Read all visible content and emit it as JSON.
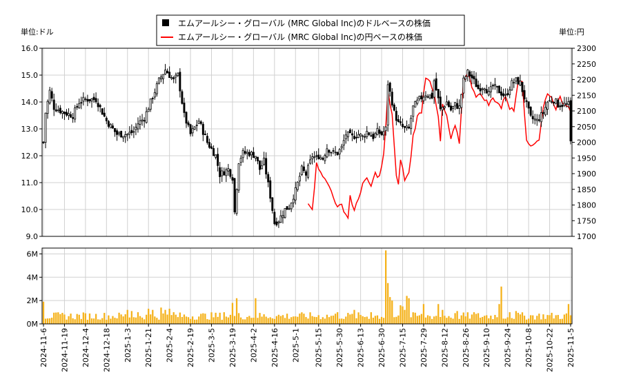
{
  "chart_data": {
    "type": "candlestick+line+bar",
    "legend": [
      {
        "label": "エムアールシー・グローバル (MRC Global Inc)のドルベースの株価",
        "marker": "square",
        "color": "#000000"
      },
      {
        "label": "エムアールシー・グローバル (MRC Global Inc)の円ベースの株価",
        "marker": "line",
        "color": "#ff0000"
      }
    ],
    "left_unit": "単位:ドル",
    "right_unit": "単位:円",
    "left_ylim": [
      9.0,
      16.0
    ],
    "left_ticks": [
      "9.0",
      "10.0",
      "11.0",
      "12.0",
      "13.0",
      "14.0",
      "15.0",
      "16.0"
    ],
    "right_ylim": [
      1700,
      2300
    ],
    "right_ticks": [
      "1700",
      "1750",
      "1800",
      "1850",
      "1900",
      "1950",
      "2000",
      "2050",
      "2100",
      "2150",
      "2200",
      "2250",
      "2300"
    ],
    "volume_ylim": [
      0,
      6500000
    ],
    "volume_ticks": [
      {
        "label": "0M",
        "value": 0
      },
      {
        "label": "2M",
        "value": 2000000
      },
      {
        "label": "4M",
        "value": 4000000
      },
      {
        "label": "6M",
        "value": 6000000
      }
    ],
    "x_ticks": [
      "2024-11-6",
      "2024-11-19",
      "2024-12-4",
      "2024-12-18",
      "2025-1-3",
      "2025-1-21",
      "2025-2-4",
      "2025-2-19",
      "2025-3-5",
      "2025-3-19",
      "2025-4-2",
      "2025-4-16",
      "2025-5-1",
      "2025-5-15",
      "2025-5-30",
      "2025-6-13",
      "2025-6-30",
      "2025-7-15",
      "2025-7-29",
      "2025-8-12",
      "2025-8-26",
      "2025-9-10",
      "2025-9-24",
      "2025-10-8",
      "2025-10-22",
      "2025-11-5"
    ],
    "trading_days": 252,
    "usd_close_keypoints": [
      [
        0,
        12.5
      ],
      [
        1,
        13.6
      ],
      [
        3,
        14.4
      ],
      [
        5,
        13.8
      ],
      [
        10,
        13.6
      ],
      [
        14,
        13.5
      ],
      [
        17,
        14.0
      ],
      [
        20,
        14.1
      ],
      [
        25,
        14.1
      ],
      [
        30,
        13.3
      ],
      [
        35,
        12.8
      ],
      [
        40,
        12.8
      ],
      [
        43,
        12.9
      ],
      [
        45,
        13.2
      ],
      [
        48,
        13.4
      ],
      [
        52,
        14.2
      ],
      [
        55,
        14.8
      ],
      [
        58,
        15.2
      ],
      [
        62,
        14.8
      ],
      [
        64,
        15.0
      ],
      [
        67,
        13.5
      ],
      [
        70,
        12.8
      ],
      [
        74,
        13.3
      ],
      [
        78,
        12.5
      ],
      [
        82,
        12.0
      ],
      [
        84,
        11.3
      ],
      [
        88,
        11.5
      ],
      [
        90,
        11.2
      ],
      [
        91,
        9.9
      ],
      [
        93,
        11.8
      ],
      [
        95,
        12.1
      ],
      [
        98,
        12.1
      ],
      [
        101,
        12.0
      ],
      [
        103,
        11.5
      ],
      [
        105,
        11.8
      ],
      [
        108,
        10.5
      ],
      [
        110,
        9.5
      ],
      [
        112,
        9.6
      ],
      [
        115,
        10.0
      ],
      [
        117,
        10.1
      ],
      [
        120,
        10.7
      ],
      [
        123,
        11.5
      ],
      [
        125,
        11.3
      ],
      [
        128,
        12.0
      ],
      [
        130,
        11.9
      ],
      [
        131,
        12.0
      ],
      [
        133,
        11.9
      ],
      [
        135,
        12.3
      ],
      [
        138,
        12.1
      ],
      [
        140,
        12.1
      ],
      [
        142,
        12.3
      ],
      [
        144,
        12.8
      ],
      [
        147,
        12.7
      ],
      [
        150,
        12.8
      ],
      [
        152,
        12.7
      ],
      [
        154,
        12.9
      ],
      [
        157,
        12.7
      ],
      [
        159,
        12.9
      ],
      [
        161,
        12.8
      ],
      [
        163,
        13.0
      ],
      [
        164,
        14.7
      ],
      [
        166,
        14.0
      ],
      [
        167,
        13.6
      ],
      [
        169,
        13.2
      ],
      [
        172,
        13.0
      ],
      [
        174,
        13.0
      ],
      [
        176,
        13.8
      ],
      [
        179,
        14.1
      ],
      [
        182,
        14.3
      ],
      [
        185,
        14.2
      ],
      [
        186,
        14.8
      ],
      [
        188,
        14.1
      ],
      [
        189,
        13.7
      ],
      [
        192,
        14.0
      ],
      [
        194,
        13.7
      ],
      [
        196,
        13.9
      ],
      [
        198,
        13.8
      ],
      [
        200,
        14.8
      ],
      [
        202,
        15.1
      ],
      [
        204,
        14.9
      ],
      [
        207,
        14.5
      ],
      [
        210,
        14.6
      ],
      [
        212,
        14.3
      ],
      [
        214,
        14.6
      ],
      [
        217,
        14.4
      ],
      [
        220,
        14.2
      ],
      [
        223,
        14.7
      ],
      [
        225,
        14.8
      ],
      [
        227,
        14.7
      ],
      [
        230,
        13.9
      ],
      [
        232,
        13.4
      ],
      [
        235,
        13.3
      ],
      [
        238,
        13.6
      ],
      [
        240,
        14.0
      ],
      [
        243,
        14.1
      ],
      [
        245,
        13.9
      ],
      [
        247,
        13.9
      ],
      [
        250,
        13.9
      ],
      [
        251,
        12.5
      ]
    ],
    "jpy_start_day": 126,
    "jpy_close_keypoints": [
      [
        126,
        1810
      ],
      [
        128,
        1790
      ],
      [
        130,
        1930
      ],
      [
        132,
        1910
      ],
      [
        134,
        1880
      ],
      [
        136,
        1860
      ],
      [
        138,
        1830
      ],
      [
        140,
        1790
      ],
      [
        142,
        1800
      ],
      [
        144,
        1770
      ],
      [
        145,
        1760
      ],
      [
        146,
        1830
      ],
      [
        148,
        1780
      ],
      [
        150,
        1820
      ],
      [
        152,
        1870
      ],
      [
        154,
        1880
      ],
      [
        156,
        1860
      ],
      [
        158,
        1900
      ],
      [
        160,
        1890
      ],
      [
        162,
        1960
      ],
      [
        163,
        2050
      ],
      [
        164,
        2160
      ],
      [
        166,
        2090
      ],
      [
        168,
        1890
      ],
      [
        169,
        1860
      ],
      [
        170,
        1950
      ],
      [
        172,
        1880
      ],
      [
        174,
        1900
      ],
      [
        176,
        2020
      ],
      [
        178,
        2080
      ],
      [
        180,
        2100
      ],
      [
        182,
        2210
      ],
      [
        184,
        2200
      ],
      [
        186,
        2150
      ],
      [
        188,
        2080
      ],
      [
        189,
        2000
      ],
      [
        190,
        2120
      ],
      [
        192,
        2080
      ],
      [
        194,
        2010
      ],
      [
        196,
        2050
      ],
      [
        198,
        2000
      ],
      [
        200,
        2200
      ],
      [
        202,
        2220
      ],
      [
        204,
        2180
      ],
      [
        206,
        2150
      ],
      [
        208,
        2150
      ],
      [
        210,
        2140
      ],
      [
        212,
        2120
      ],
      [
        214,
        2140
      ],
      [
        216,
        2130
      ],
      [
        218,
        2110
      ],
      [
        220,
        2150
      ],
      [
        222,
        2110
      ],
      [
        224,
        2100
      ],
      [
        226,
        2200
      ],
      [
        228,
        2200
      ],
      [
        229,
        2100
      ],
      [
        230,
        2000
      ],
      [
        232,
        1990
      ],
      [
        234,
        2000
      ],
      [
        236,
        2010
      ],
      [
        238,
        2110
      ],
      [
        240,
        2160
      ],
      [
        242,
        2140
      ],
      [
        244,
        2110
      ],
      [
        246,
        2140
      ],
      [
        248,
        2120
      ],
      [
        250,
        2120
      ],
      [
        251,
        2100
      ]
    ],
    "volume_special": [
      [
        0,
        1.9
      ],
      [
        163,
        6.3
      ],
      [
        164,
        3.5
      ],
      [
        165,
        2.3
      ],
      [
        166,
        2.0
      ],
      [
        170,
        1.6
      ],
      [
        171,
        1.5
      ],
      [
        172,
        1.2
      ],
      [
        173,
        2.4
      ],
      [
        174,
        2.2
      ],
      [
        181,
        1.7
      ],
      [
        188,
        1.7
      ],
      [
        217,
        1.7
      ],
      [
        218,
        3.2
      ],
      [
        148,
        1.2
      ],
      [
        156,
        1.0
      ],
      [
        140,
        1.0
      ],
      [
        101,
        2.2
      ],
      [
        92,
        2.2
      ],
      [
        90,
        1.8
      ],
      [
        86,
        1.0
      ],
      [
        62,
        1.0
      ],
      [
        60,
        1.3
      ],
      [
        58,
        1.2
      ],
      [
        56,
        1.4
      ],
      [
        40,
        1.2
      ],
      [
        42,
        1.1
      ],
      [
        50,
        1.3
      ],
      [
        52,
        1.2
      ],
      [
        45,
        1.0
      ],
      [
        190,
        1.2
      ],
      [
        197,
        1.1
      ],
      [
        250,
        1.7
      ],
      [
        205,
        1.0
      ],
      [
        222,
        1.0
      ],
      [
        225,
        1.1
      ]
    ]
  }
}
